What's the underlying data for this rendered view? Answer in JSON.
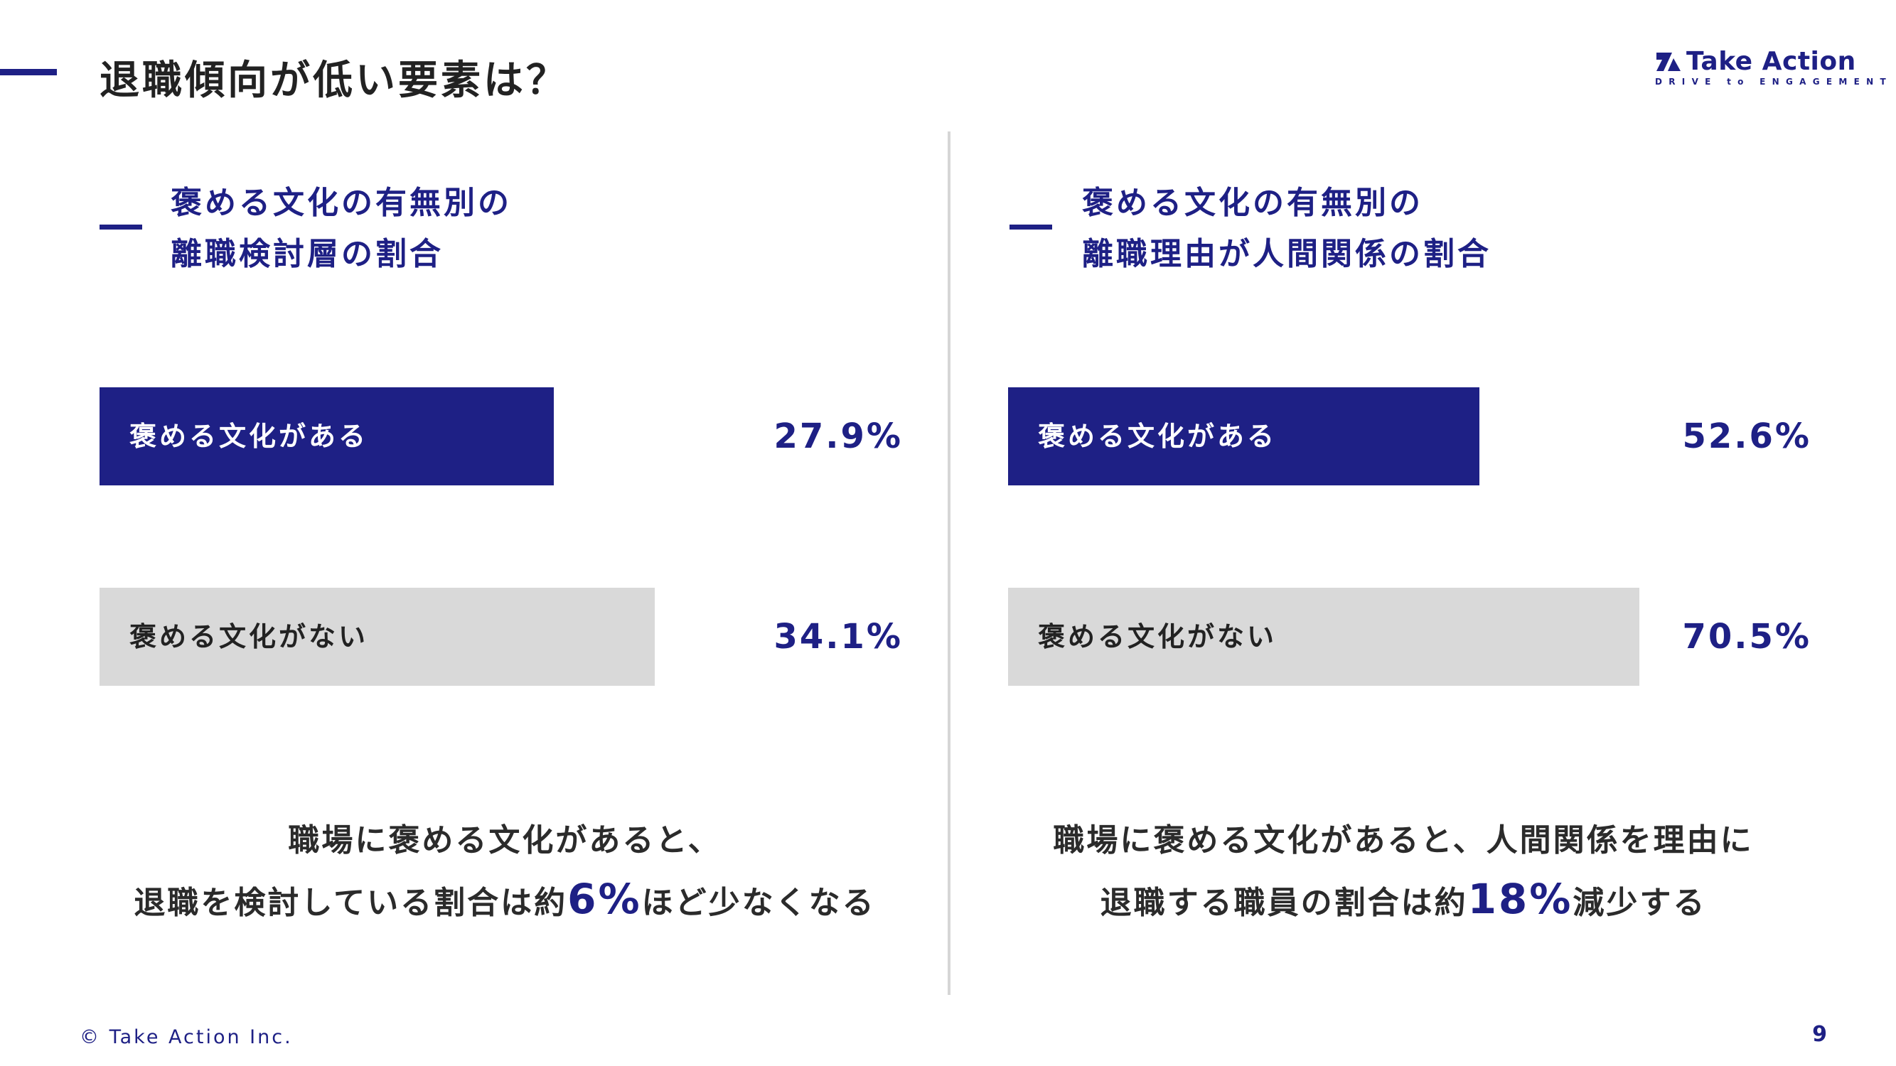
{
  "header": {
    "title": "退職傾向が低い要素は？",
    "logo_name": "Take Action",
    "logo_tagline": "DRIVE to ENGAGEMENT"
  },
  "colors": {
    "accent": "#1e2085",
    "bar_highlight": "#1e2085",
    "bar_neutral": "#d9d9d9",
    "divider": "#d6d6d6"
  },
  "panels": [
    {
      "title_line1": "褒める文化の有無別の",
      "title_line2": "離職検討層の割合",
      "summary_line1": "職場に褒める文化があると、",
      "summary_line2_pre": "退職を検討している割合は約",
      "summary_highlight": "6%",
      "summary_line2_post": "ほど少なくなる"
    },
    {
      "title_line1": "褒める文化の有無別の",
      "title_line2": "離職理由が人間関係の割合",
      "summary_line1": "職場に褒める文化があると、人間関係を理由に",
      "summary_line2_pre": "退職する職員の割合は約",
      "summary_highlight": "18%",
      "summary_line2_post": "減少する"
    }
  ],
  "chart_data": [
    {
      "type": "bar",
      "orientation": "horizontal",
      "title": "褒める文化の有無別の離職検討層の割合",
      "categories": [
        "褒める文化がある",
        "褒める文化がない"
      ],
      "values": [
        27.9,
        34.1
      ],
      "value_labels": [
        "27.9%",
        "34.1%"
      ],
      "unit": "%",
      "grid": false
    },
    {
      "type": "bar",
      "orientation": "horizontal",
      "title": "褒める文化の有無別の離職理由が人間関係の割合",
      "categories": [
        "褒める文化がある",
        "褒める文化がない"
      ],
      "values": [
        52.6,
        70.5
      ],
      "value_labels": [
        "52.6%",
        "70.5%"
      ],
      "unit": "%",
      "grid": false
    }
  ],
  "footer": {
    "copyright": "© Take Action Inc.",
    "page_number": "9"
  }
}
